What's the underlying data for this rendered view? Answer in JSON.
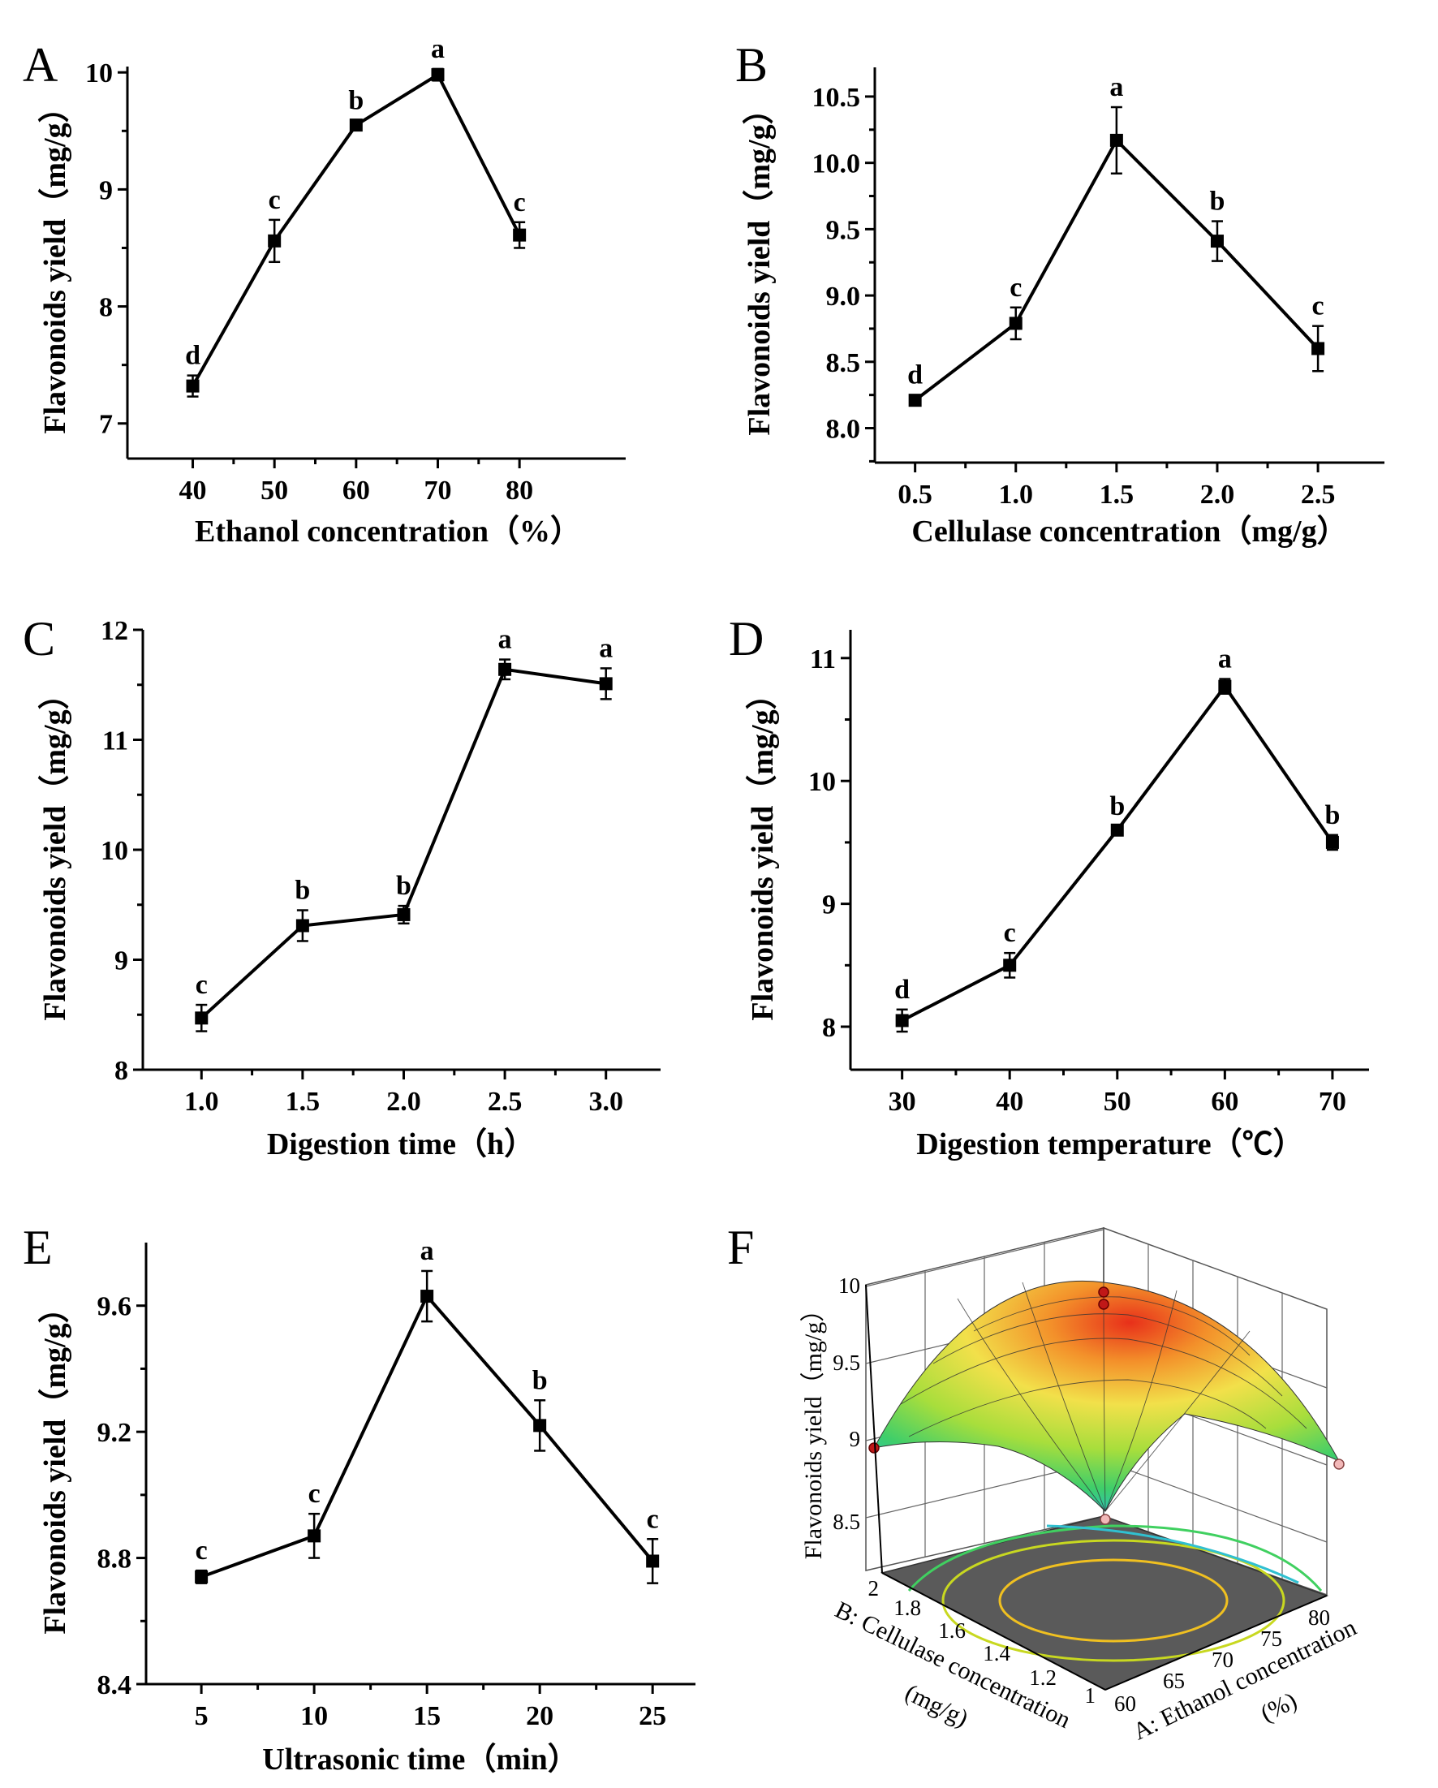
{
  "chart_data": [
    {
      "panel": "A",
      "type": "line",
      "xlabel": "Ethanol concentration（%）",
      "ylabel": "Flavonoids yield（mg/g）",
      "x": [
        40,
        50,
        60,
        70,
        80
      ],
      "x_tick_labels": [
        "40",
        "50",
        "60",
        "70",
        "80"
      ],
      "values": [
        7.32,
        8.56,
        9.55,
        9.98,
        8.61
      ],
      "errors": [
        0.09,
        0.18,
        0.04,
        0.05,
        0.11
      ],
      "labels": [
        "d",
        "c",
        "b",
        "a",
        "c"
      ],
      "xlim": [
        32,
        93
      ],
      "ylim": [
        6.7,
        10.05
      ],
      "y_ticks": [
        7,
        8,
        9,
        10
      ],
      "y_tick_labels": [
        "7",
        "8",
        "9",
        "10"
      ]
    },
    {
      "panel": "B",
      "type": "line",
      "xlabel": "Cellulase concentration（mg/g）",
      "ylabel": "Flavonoids yield（mg/g）",
      "x": [
        0.5,
        1.0,
        1.5,
        2.0,
        2.5
      ],
      "x_tick_labels": [
        "0.5",
        "1.0",
        "1.5",
        "2.0",
        "2.5"
      ],
      "values": [
        8.21,
        8.79,
        10.17,
        9.41,
        8.6
      ],
      "errors": [
        0.04,
        0.12,
        0.25,
        0.15,
        0.17
      ],
      "labels": [
        "d",
        "c",
        "a",
        "b",
        "c"
      ],
      "xlim": [
        0.3,
        2.83
      ],
      "ylim": [
        7.74,
        10.72
      ],
      "y_ticks": [
        8.0,
        8.5,
        9.0,
        9.5,
        10.0,
        10.5
      ],
      "y_tick_labels": [
        "8.0",
        "8.5",
        "9.0",
        "9.5",
        "10.0",
        "10.5"
      ]
    },
    {
      "panel": "C",
      "type": "line",
      "xlabel": "Digestion time（h）",
      "ylabel": "Flavonoids yield（mg/g）",
      "x": [
        1.0,
        1.5,
        2.0,
        2.5,
        3.0
      ],
      "x_tick_labels": [
        "1.0",
        "1.5",
        "2.0",
        "2.5",
        "3.0"
      ],
      "values": [
        8.47,
        9.31,
        9.41,
        11.64,
        11.51
      ],
      "errors": [
        0.12,
        0.14,
        0.08,
        0.09,
        0.14
      ],
      "labels": [
        "c",
        "b",
        "b",
        "a",
        "a"
      ],
      "xlim": [
        0.71,
        3.27
      ],
      "ylim": [
        8.0,
        12.0
      ],
      "y_ticks": [
        8,
        9,
        10,
        11,
        12
      ],
      "y_tick_labels": [
        "8",
        "9",
        "10",
        "11",
        "12"
      ]
    },
    {
      "panel": "D",
      "type": "line",
      "xlabel": "Digestion temperature（℃）",
      "ylabel": "Flavonoids yield（mg/g）",
      "x": [
        30,
        40,
        50,
        60,
        70
      ],
      "x_tick_labels": [
        "30",
        "40",
        "50",
        "60",
        "70"
      ],
      "values": [
        8.05,
        8.5,
        9.6,
        10.77,
        9.5
      ],
      "errors": [
        0.09,
        0.1,
        0.03,
        0.06,
        0.06
      ],
      "labels": [
        "d",
        "c",
        "b",
        "a",
        "b"
      ],
      "xlim": [
        25.2,
        73.4
      ],
      "ylim": [
        7.65,
        11.23
      ],
      "y_ticks": [
        8,
        9,
        10,
        11
      ],
      "y_tick_labels": [
        "8",
        "9",
        "10",
        "11"
      ]
    },
    {
      "panel": "E",
      "type": "line",
      "xlabel": "Ultrasonic time（min）",
      "ylabel": "Flavonoids yield（mg/g）",
      "x": [
        5,
        10,
        15,
        20,
        25
      ],
      "x_tick_labels": [
        "5",
        "10",
        "15",
        "20",
        "25"
      ],
      "values": [
        8.74,
        8.87,
        9.63,
        9.22,
        8.79
      ],
      "errors": [
        0.02,
        0.07,
        0.08,
        0.08,
        0.07
      ],
      "labels": [
        "c",
        "c",
        "a",
        "b",
        "c"
      ],
      "xlim": [
        2.55,
        26.9
      ],
      "ylim": [
        8.4,
        9.8
      ],
      "y_ticks": [
        8.4,
        8.8,
        9.2,
        9.6
      ],
      "y_tick_labels": [
        "8.4",
        "8.8",
        "9.2",
        "9.6"
      ]
    },
    {
      "panel": "F",
      "type": "surface",
      "zlabel": "Flavonoids yield（mg/g）",
      "z_tick_labels": [
        "8.5",
        "9",
        "9.5",
        "10"
      ],
      "blabel_1": "B:  Cellulase concentration",
      "blabel_2": "(mg/g)",
      "b_tick_labels": [
        "1",
        "1.2",
        "1.4",
        "1.6",
        "1.8",
        "2"
      ],
      "alabel_1": "A:  Ethanol concentration",
      "alabel_2": "(%)",
      "a_tick_labels": [
        "60",
        "65",
        "70",
        "75",
        "80"
      ]
    }
  ]
}
